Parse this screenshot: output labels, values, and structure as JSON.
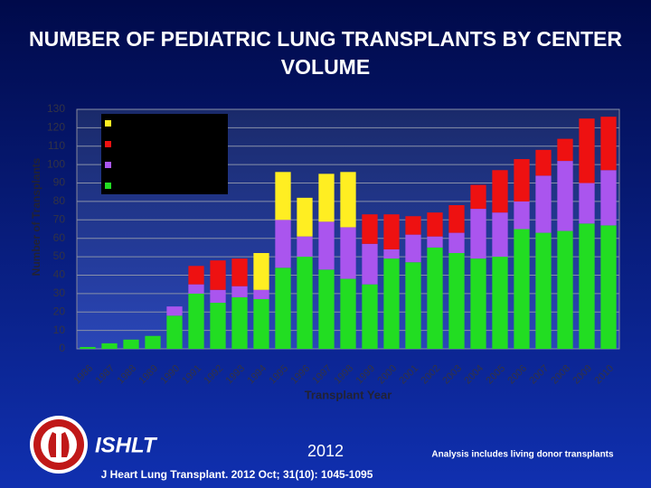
{
  "chart_data": {
    "type": "stacked-bar",
    "title": "NUMBER OF PEDIATRIC LUNG TRANSPLANTS BY CENTER VOLUME",
    "x_label": "Transplant Year",
    "y_label": "Number of Transplants",
    "categories": [
      "1986",
      "1987",
      "1988",
      "1989",
      "1990",
      "1991",
      "1992",
      "1993",
      "1994",
      "1995",
      "1996",
      "1997",
      "1998",
      "1999",
      "2000",
      "2001",
      "2002",
      "2003",
      "2004",
      "2005",
      "2006",
      "2007",
      "2008",
      "2009",
      "2010"
    ],
    "series": [
      {
        "color": "#22dd22",
        "values": [
          1,
          3,
          5,
          7,
          18,
          30,
          25,
          28,
          27,
          44,
          50,
          43,
          38,
          35,
          49,
          47,
          55,
          52,
          49,
          50,
          65,
          63,
          64,
          68,
          67
        ]
      },
      {
        "color": "#aa55ee",
        "values": [
          0,
          0,
          0,
          0,
          5,
          5,
          7,
          6,
          5,
          26,
          11,
          26,
          28,
          22,
          5,
          15,
          6,
          11,
          27,
          24,
          15,
          31,
          38,
          22,
          30
        ]
      },
      {
        "color": "#ee1111",
        "values": [
          0,
          0,
          0,
          0,
          0,
          10,
          16,
          15,
          0,
          0,
          0,
          0,
          0,
          16,
          19,
          10,
          13,
          15,
          13,
          23,
          23,
          14,
          12,
          35,
          29
        ]
      },
      {
        "color": "#ffee22",
        "values": [
          0,
          0,
          0,
          0,
          0,
          0,
          0,
          0,
          20,
          26,
          21,
          26,
          30,
          0,
          0,
          0,
          0,
          0,
          0,
          0,
          0,
          0,
          0,
          0,
          0
        ]
      }
    ],
    "ylim": [
      0,
      130
    ],
    "yticks": [
      0,
      10,
      20,
      30,
      40,
      50,
      60,
      70,
      80,
      90,
      100,
      110,
      120,
      130
    ],
    "grid": true
  },
  "footer": {
    "logo_text": "ISHLT",
    "year": "2012",
    "citation": "J Heart Lung Transplant. 2012 Oct; 31(10): 1045-1095",
    "note": "Analysis includes living donor transplants"
  }
}
